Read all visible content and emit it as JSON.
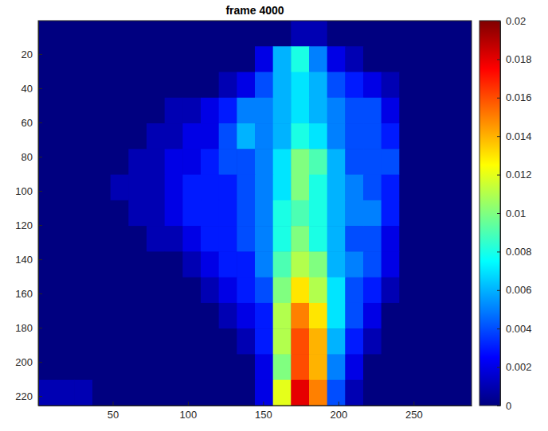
{
  "chart_data": {
    "type": "heatmap",
    "title": "frame 4000",
    "x": [
      6.5,
      18.5,
      30.5,
      42.5,
      54.5,
      66.5,
      78.5,
      90.5,
      102.5,
      114.5,
      126.5,
      138.5,
      150.5,
      162.5,
      174.5,
      186.5,
      198.5,
      210.5,
      222.5,
      234.5,
      246.5,
      258.5,
      270.5,
      282.5
    ],
    "y": [
      8,
      23,
      38,
      53,
      68,
      83,
      98,
      113,
      128,
      143,
      158,
      173,
      188,
      203,
      218
    ],
    "values": [
      [
        0,
        0,
        0,
        0,
        0,
        0,
        0,
        0,
        0,
        0,
        0,
        0,
        0,
        0,
        0.001,
        0.001,
        0,
        0,
        0,
        0,
        0,
        0,
        0,
        0
      ],
      [
        0,
        0,
        0,
        0,
        0,
        0,
        0,
        0,
        0,
        0,
        0,
        0,
        0.002,
        0.006,
        0.008,
        0.005,
        0.002,
        0.001,
        0,
        0,
        0,
        0,
        0,
        0
      ],
      [
        0,
        0,
        0,
        0,
        0,
        0,
        0,
        0,
        0,
        0,
        0.001,
        0.002,
        0.004,
        0.006,
        0.007,
        0.006,
        0.004,
        0.003,
        0.002,
        0.001,
        0,
        0,
        0,
        0
      ],
      [
        0,
        0,
        0,
        0,
        0,
        0,
        0,
        0.001,
        0.001,
        0.002,
        0.003,
        0.005,
        0.005,
        0.006,
        0.007,
        0.006,
        0.005,
        0.004,
        0.004,
        0.002,
        0,
        0,
        0,
        0
      ],
      [
        0,
        0,
        0,
        0,
        0,
        0,
        0.001,
        0.001,
        0.002,
        0.002,
        0.004,
        0.006,
        0.005,
        0.006,
        0.008,
        0.007,
        0.005,
        0.004,
        0.004,
        0.003,
        0,
        0,
        0,
        0
      ],
      [
        0,
        0,
        0,
        0,
        0,
        0.001,
        0.001,
        0.002,
        0.002,
        0.003,
        0.004,
        0.004,
        0.005,
        0.007,
        0.01,
        0.009,
        0.006,
        0.004,
        0.004,
        0.004,
        0,
        0,
        0,
        0
      ],
      [
        0,
        0,
        0,
        0,
        0.001,
        0.001,
        0.001,
        0.002,
        0.003,
        0.003,
        0.003,
        0.004,
        0.005,
        0.007,
        0.01,
        0.008,
        0.006,
        0.005,
        0.004,
        0.003,
        0,
        0,
        0,
        0
      ],
      [
        0,
        0,
        0,
        0,
        0,
        0.001,
        0.001,
        0.002,
        0.003,
        0.003,
        0.003,
        0.004,
        0.005,
        0.008,
        0.009,
        0.008,
        0.006,
        0.005,
        0.005,
        0.003,
        0,
        0,
        0,
        0
      ],
      [
        0,
        0,
        0,
        0,
        0,
        0,
        0.001,
        0.001,
        0.002,
        0.003,
        0.003,
        0.004,
        0.005,
        0.008,
        0.01,
        0.008,
        0.006,
        0.004,
        0.004,
        0.002,
        0,
        0,
        0,
        0
      ],
      [
        0,
        0,
        0,
        0,
        0,
        0,
        0,
        0,
        0.001,
        0.002,
        0.003,
        0.003,
        0.005,
        0.009,
        0.011,
        0.01,
        0.006,
        0.005,
        0.004,
        0.002,
        0,
        0,
        0,
        0
      ],
      [
        0,
        0,
        0,
        0,
        0,
        0,
        0,
        0,
        0,
        0.001,
        0.002,
        0.003,
        0.004,
        0.01,
        0.013,
        0.011,
        0.007,
        0.004,
        0.003,
        0.001,
        0,
        0,
        0,
        0
      ],
      [
        0,
        0,
        0,
        0,
        0,
        0,
        0,
        0,
        0,
        0,
        0.001,
        0.002,
        0.003,
        0.011,
        0.015,
        0.013,
        0.007,
        0.004,
        0.002,
        0,
        0,
        0,
        0,
        0
      ],
      [
        0,
        0,
        0,
        0,
        0,
        0,
        0,
        0,
        0,
        0,
        0,
        0.001,
        0.003,
        0.011,
        0.016,
        0.014,
        0.006,
        0.003,
        0.001,
        0,
        0,
        0,
        0,
        0
      ],
      [
        0,
        0,
        0,
        0,
        0,
        0,
        0,
        0,
        0,
        0,
        0,
        0,
        0.002,
        0.01,
        0.016,
        0.014,
        0.005,
        0.002,
        0,
        0,
        0,
        0,
        0,
        0
      ],
      [
        0.001,
        0.001,
        0.001,
        0,
        0,
        0,
        0,
        0,
        0,
        0,
        0,
        0,
        0.002,
        0.012,
        0.018,
        0.015,
        0.004,
        0.001,
        0,
        0,
        0,
        0,
        0,
        0
      ]
    ],
    "xlim": [
      0.5,
      288.5
    ],
    "ylim": [
      0.5,
      225.5
    ],
    "xticks": [
      50,
      100,
      150,
      200,
      250
    ],
    "yticks": [
      20,
      40,
      60,
      80,
      100,
      120,
      140,
      160,
      180,
      200,
      220
    ],
    "colorbar_range": [
      0,
      0.02
    ],
    "colorbar_ticks": [
      0,
      0.002,
      0.004,
      0.006,
      0.008,
      0.01,
      0.012,
      0.014,
      0.016,
      0.018,
      0.02
    ]
  }
}
